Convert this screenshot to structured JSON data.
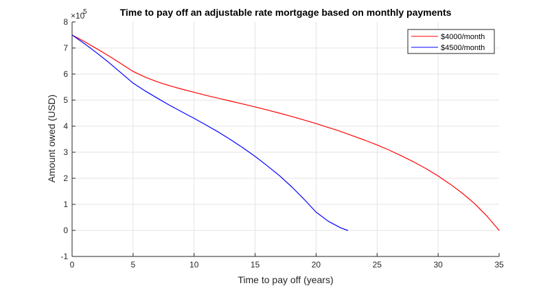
{
  "chart_data": {
    "type": "line",
    "title": "Time to pay off an adjustable rate mortgage based on monthly payments",
    "xlabel": "Time to pay off (years)",
    "ylabel": "Amount owed (USD)",
    "y_exponent_base": "×10",
    "y_exponent_power": "5",
    "xlim": [
      0,
      35
    ],
    "ylim": [
      -1,
      8
    ],
    "x_ticks": [
      0,
      5,
      10,
      15,
      20,
      25,
      30,
      35
    ],
    "y_ticks": [
      -1,
      0,
      1,
      2,
      3,
      4,
      5,
      6,
      7,
      8
    ],
    "x_tick_labels": [
      "0",
      "5",
      "10",
      "15",
      "20",
      "25",
      "30",
      "35"
    ],
    "y_tick_labels": [
      "-1",
      "0",
      "1",
      "2",
      "3",
      "4",
      "5",
      "6",
      "7",
      "8"
    ],
    "grid": true,
    "legend_position": "top-right",
    "series": [
      {
        "name": "$4000/month",
        "color": "#ff0000",
        "x": [
          0,
          1,
          2,
          3,
          4,
          5,
          6,
          7,
          8,
          9,
          10,
          11,
          12,
          13,
          14,
          15,
          16,
          17,
          18,
          19,
          20,
          21,
          22,
          23,
          24,
          25,
          26,
          27,
          28,
          29,
          30,
          31,
          32,
          33,
          34,
          35
        ],
        "y": [
          7.5,
          7.25,
          6.98,
          6.7,
          6.4,
          6.1,
          5.88,
          5.7,
          5.55,
          5.42,
          5.3,
          5.18,
          5.07,
          4.96,
          4.85,
          4.74,
          4.62,
          4.5,
          4.37,
          4.24,
          4.1,
          3.95,
          3.8,
          3.63,
          3.46,
          3.28,
          3.08,
          2.86,
          2.63,
          2.37,
          2.09,
          1.77,
          1.42,
          1.02,
          0.55,
          0.0
        ]
      },
      {
        "name": "$4500/month",
        "color": "#0000ff",
        "x": [
          0,
          1,
          2,
          3,
          4,
          5,
          6,
          7,
          8,
          9,
          10,
          11,
          12,
          13,
          14,
          15,
          16,
          17,
          18,
          19,
          20,
          21,
          22,
          22.6
        ],
        "y": [
          7.5,
          7.17,
          6.82,
          6.45,
          6.05,
          5.65,
          5.35,
          5.07,
          4.8,
          4.55,
          4.3,
          4.04,
          3.77,
          3.48,
          3.17,
          2.84,
          2.48,
          2.1,
          1.67,
          1.2,
          0.7,
          0.35,
          0.1,
          0.0
        ]
      }
    ]
  }
}
